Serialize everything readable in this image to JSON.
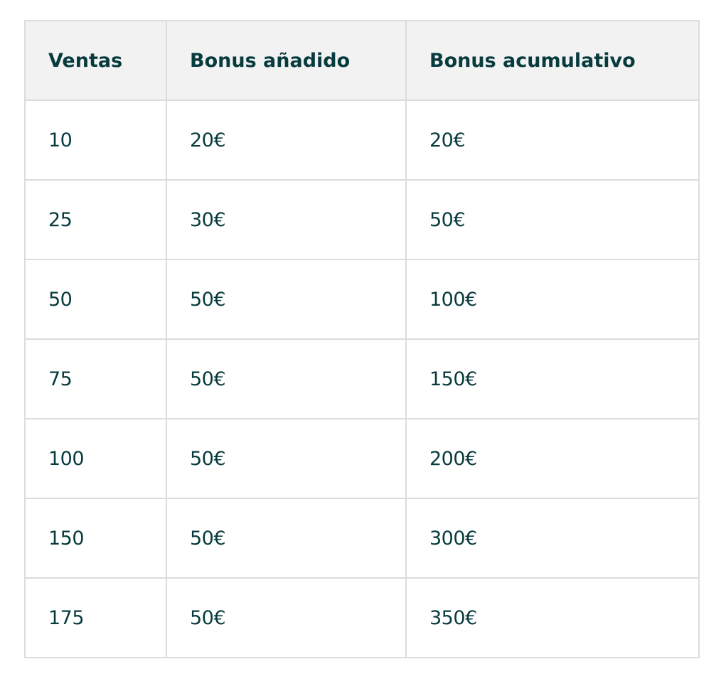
{
  "table": {
    "headers": [
      "Ventas",
      "Bonus añadido",
      "Bonus acumulativo"
    ],
    "rows": [
      [
        "10",
        "20€",
        "20€"
      ],
      [
        "25",
        "30€",
        "50€"
      ],
      [
        "50",
        "50€",
        "100€"
      ],
      [
        "75",
        "50€",
        "150€"
      ],
      [
        "100",
        "50€",
        "200€"
      ],
      [
        "150",
        "50€",
        "300€"
      ],
      [
        "175",
        "50€",
        "350€"
      ]
    ]
  }
}
